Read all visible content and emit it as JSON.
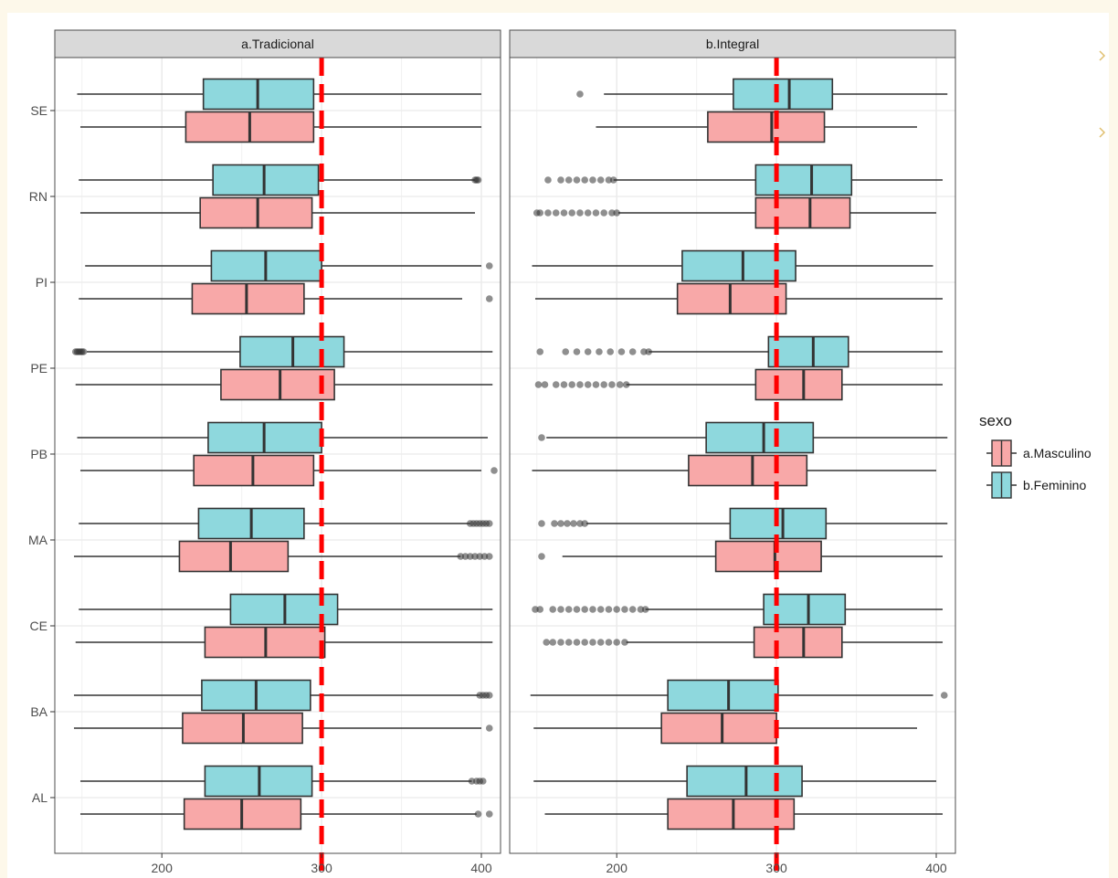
{
  "chart_data": {
    "type": "boxplot",
    "orientation": "horizontal",
    "x_range": [
      133,
      412
    ],
    "x_ticks": [
      200,
      300,
      400
    ],
    "reference_line": {
      "x": 300,
      "color": "#ff0000",
      "style": "dashed"
    },
    "grid": true,
    "legend": {
      "title": "sexo",
      "placement": "right",
      "entries": [
        {
          "key": "a.Masculino",
          "label": "a.Masculino",
          "color": "#f8a8a8"
        },
        {
          "key": "b.Feminino",
          "label": "b.Feminino",
          "color": "#8ed8dd"
        }
      ]
    },
    "categories": [
      "SE",
      "RN",
      "PI",
      "PE",
      "PB",
      "MA",
      "CE",
      "BA",
      "AL"
    ],
    "panels": [
      {
        "title": "a.Tradicional",
        "boxes": [
          {
            "state": "SE",
            "sex": "b.Feminino",
            "min": 147,
            "q1": 226,
            "median": 260,
            "q3": 295,
            "max": 400,
            "outliers": []
          },
          {
            "state": "SE",
            "sex": "a.Masculino",
            "min": 149,
            "q1": 215,
            "median": 255,
            "q3": 295,
            "max": 400,
            "outliers": []
          },
          {
            "state": "RN",
            "sex": "b.Feminino",
            "min": 148,
            "q1": 232,
            "median": 264,
            "q3": 298,
            "max": 396,
            "outliers": [
              396,
              397,
              398
            ]
          },
          {
            "state": "RN",
            "sex": "a.Masculino",
            "min": 149,
            "q1": 224,
            "median": 260,
            "q3": 294,
            "max": 396,
            "outliers": []
          },
          {
            "state": "PI",
            "sex": "b.Feminino",
            "min": 152,
            "q1": 231,
            "median": 265,
            "q3": 300,
            "max": 400,
            "outliers": [
              405
            ]
          },
          {
            "state": "PI",
            "sex": "a.Masculino",
            "min": 148,
            "q1": 219,
            "median": 253,
            "q3": 289,
            "max": 388,
            "outliers": [
              405
            ]
          },
          {
            "state": "PE",
            "sex": "b.Feminino",
            "min": 153,
            "q1": 249,
            "median": 282,
            "q3": 314,
            "max": 407,
            "outliers": [
              146,
              147,
              148,
              149,
              150,
              151
            ]
          },
          {
            "state": "PE",
            "sex": "a.Masculino",
            "min": 146,
            "q1": 237,
            "median": 274,
            "q3": 308,
            "max": 407,
            "outliers": []
          },
          {
            "state": "PB",
            "sex": "b.Feminino",
            "min": 147,
            "q1": 229,
            "median": 264,
            "q3": 300,
            "max": 404,
            "outliers": []
          },
          {
            "state": "PB",
            "sex": "a.Masculino",
            "min": 149,
            "q1": 220,
            "median": 257,
            "q3": 295,
            "max": 400,
            "outliers": [
              408
            ]
          },
          {
            "state": "MA",
            "sex": "b.Feminino",
            "min": 148,
            "q1": 223,
            "median": 256,
            "q3": 289,
            "max": 393,
            "outliers": [
              393,
              395,
              397,
              399,
              401,
              403,
              405
            ]
          },
          {
            "state": "MA",
            "sex": "a.Masculino",
            "min": 145,
            "q1": 211,
            "median": 243,
            "q3": 279,
            "max": 387,
            "outliers": [
              387,
              390,
              393,
              396,
              399,
              402,
              405
            ]
          },
          {
            "state": "CE",
            "sex": "b.Feminino",
            "min": 148,
            "q1": 243,
            "median": 277,
            "q3": 310,
            "max": 407,
            "outliers": []
          },
          {
            "state": "CE",
            "sex": "a.Masculino",
            "min": 146,
            "q1": 227,
            "median": 265,
            "q3": 302,
            "max": 407,
            "outliers": []
          },
          {
            "state": "BA",
            "sex": "b.Feminino",
            "min": 145,
            "q1": 225,
            "median": 259,
            "q3": 293,
            "max": 399,
            "outliers": [
              399,
              401,
              403,
              405
            ]
          },
          {
            "state": "BA",
            "sex": "a.Masculino",
            "min": 145,
            "q1": 213,
            "median": 251,
            "q3": 288,
            "max": 400,
            "outliers": [
              405
            ]
          },
          {
            "state": "AL",
            "sex": "b.Feminino",
            "min": 149,
            "q1": 227,
            "median": 261,
            "q3": 294,
            "max": 394,
            "outliers": [
              394,
              397,
              399,
              401
            ]
          },
          {
            "state": "AL",
            "sex": "a.Masculino",
            "min": 149,
            "q1": 214,
            "median": 250,
            "q3": 287,
            "max": 397,
            "outliers": [
              398,
              405
            ]
          }
        ]
      },
      {
        "title": "b.Integral",
        "boxes": [
          {
            "state": "SE",
            "sex": "b.Feminino",
            "min": 192,
            "q1": 273,
            "median": 308,
            "q3": 335,
            "max": 407,
            "outliers": [
              177
            ]
          },
          {
            "state": "SE",
            "sex": "a.Masculino",
            "min": 187,
            "q1": 257,
            "median": 297,
            "q3": 330,
            "max": 388,
            "outliers": []
          },
          {
            "state": "RN",
            "sex": "b.Feminino",
            "min": 198,
            "q1": 287,
            "median": 322,
            "q3": 347,
            "max": 404,
            "outliers": [
              157,
              165,
              170,
              175,
              180,
              185,
              190,
              195,
              198
            ]
          },
          {
            "state": "RN",
            "sex": "a.Masculino",
            "min": 201,
            "q1": 287,
            "median": 321,
            "q3": 346,
            "max": 400,
            "outliers": [
              150,
              152,
              157,
              162,
              167,
              172,
              177,
              182,
              187,
              192,
              197,
              200
            ]
          },
          {
            "state": "PI",
            "sex": "b.Feminino",
            "min": 147,
            "q1": 241,
            "median": 279,
            "q3": 312,
            "max": 398,
            "outliers": []
          },
          {
            "state": "PI",
            "sex": "a.Masculino",
            "min": 149,
            "q1": 238,
            "median": 271,
            "q3": 306,
            "max": 404,
            "outliers": []
          },
          {
            "state": "PE",
            "sex": "b.Feminino",
            "min": 220,
            "q1": 295,
            "median": 323,
            "q3": 345,
            "max": 404,
            "outliers": [
              152,
              168,
              175,
              182,
              189,
              196,
              203,
              210,
              217,
              220
            ]
          },
          {
            "state": "PE",
            "sex": "a.Masculino",
            "min": 206,
            "q1": 287,
            "median": 317,
            "q3": 341,
            "max": 404,
            "outliers": [
              151,
              155,
              162,
              167,
              172,
              177,
              182,
              187,
              192,
              197,
              202,
              206
            ]
          },
          {
            "state": "PB",
            "sex": "b.Feminino",
            "min": 156,
            "q1": 256,
            "median": 292,
            "q3": 323,
            "max": 407,
            "outliers": [
              153
            ]
          },
          {
            "state": "PB",
            "sex": "a.Masculino",
            "min": 147,
            "q1": 245,
            "median": 285,
            "q3": 319,
            "max": 400,
            "outliers": []
          },
          {
            "state": "MA",
            "sex": "b.Feminino",
            "min": 181,
            "q1": 271,
            "median": 304,
            "q3": 331,
            "max": 407,
            "outliers": [
              153,
              161,
              165,
              169,
              173,
              177,
              180
            ]
          },
          {
            "state": "MA",
            "sex": "a.Masculino",
            "min": 166,
            "q1": 262,
            "median": 299,
            "q3": 328,
            "max": 404,
            "outliers": [
              153
            ]
          },
          {
            "state": "CE",
            "sex": "b.Feminino",
            "min": 218,
            "q1": 292,
            "median": 320,
            "q3": 343,
            "max": 404,
            "outliers": [
              149,
              152,
              160,
              165,
              170,
              175,
              180,
              185,
              190,
              195,
              200,
              205,
              210,
              215,
              218
            ]
          },
          {
            "state": "CE",
            "sex": "a.Masculino",
            "min": 206,
            "q1": 286,
            "median": 317,
            "q3": 341,
            "max": 404,
            "outliers": [
              156,
              160,
              165,
              170,
              175,
              180,
              185,
              190,
              195,
              200,
              205
            ]
          },
          {
            "state": "BA",
            "sex": "b.Feminino",
            "min": 146,
            "q1": 232,
            "median": 270,
            "q3": 301,
            "max": 398,
            "outliers": [
              405
            ]
          },
          {
            "state": "BA",
            "sex": "a.Masculino",
            "min": 148,
            "q1": 228,
            "median": 266,
            "q3": 300,
            "max": 388,
            "outliers": []
          },
          {
            "state": "AL",
            "sex": "b.Feminino",
            "min": 148,
            "q1": 244,
            "median": 281,
            "q3": 316,
            "max": 400,
            "outliers": []
          },
          {
            "state": "AL",
            "sex": "a.Masculino",
            "min": 155,
            "q1": 232,
            "median": 273,
            "q3": 311,
            "max": 404,
            "outliers": []
          }
        ]
      }
    ]
  }
}
